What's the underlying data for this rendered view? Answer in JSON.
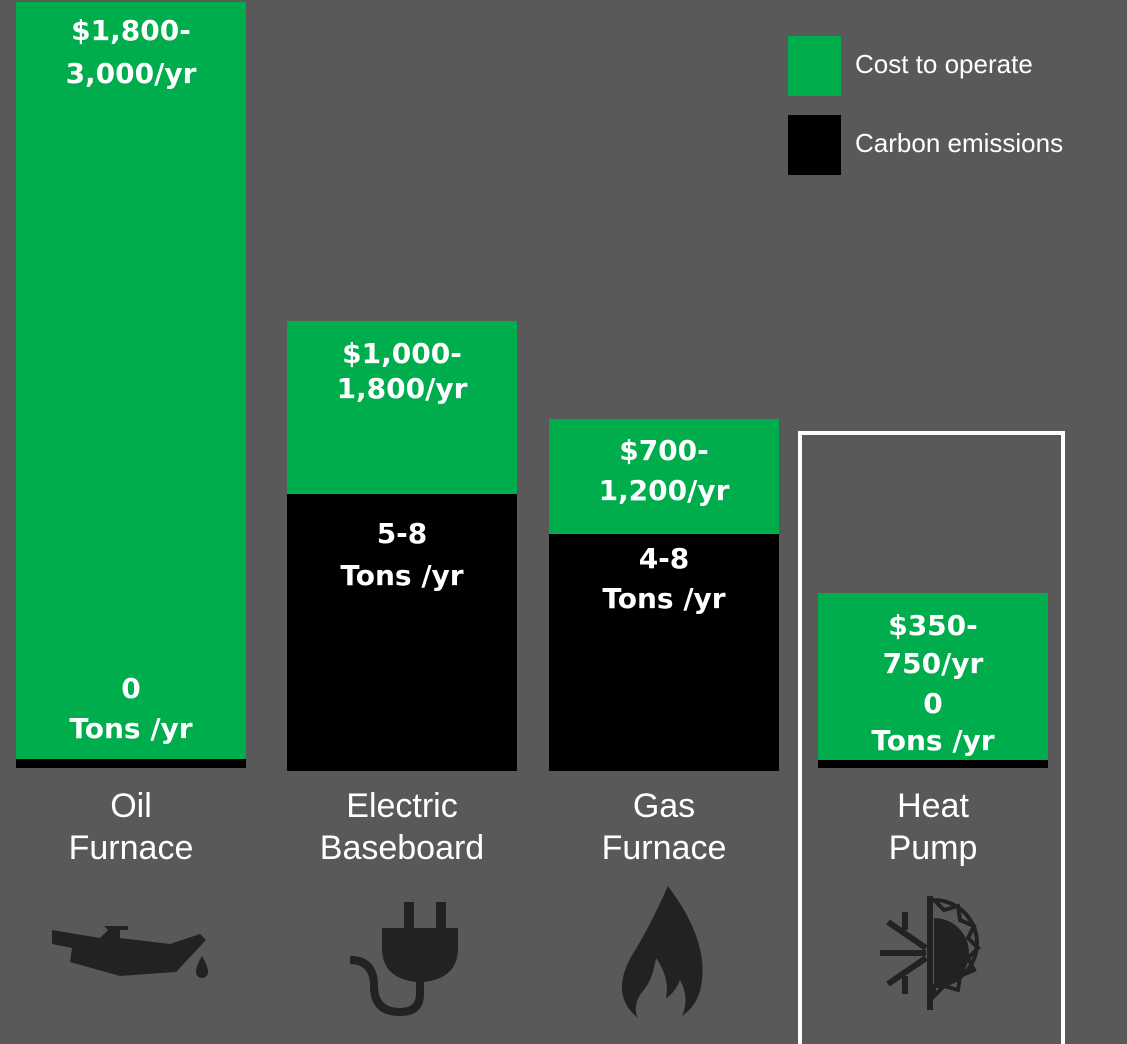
{
  "legend": [
    {
      "label": "Cost to operate",
      "color": "#00ad4d"
    },
    {
      "label": "Carbon emissions",
      "color": "#000000"
    }
  ],
  "bars": [
    {
      "name": [
        "Oil",
        "Furnace"
      ],
      "cost": [
        "$1,800-",
        "3,000/yr"
      ],
      "emissions": [
        "0",
        "Tons /yr"
      ]
    },
    {
      "name": [
        "Electric",
        "Baseboard"
      ],
      "cost": [
        "$1,000-",
        "1,800/yr"
      ],
      "emissions": [
        "5-8",
        "Tons /yr"
      ]
    },
    {
      "name": [
        "Gas",
        "Furnace"
      ],
      "cost": [
        "$700-",
        "1,200/yr"
      ],
      "emissions": [
        "4-8",
        "Tons /yr"
      ]
    },
    {
      "name": [
        "Heat",
        "Pump"
      ],
      "cost": [
        "$350-",
        "750/yr"
      ],
      "emissions": [
        "0",
        "Tons /yr"
      ]
    }
  ]
}
